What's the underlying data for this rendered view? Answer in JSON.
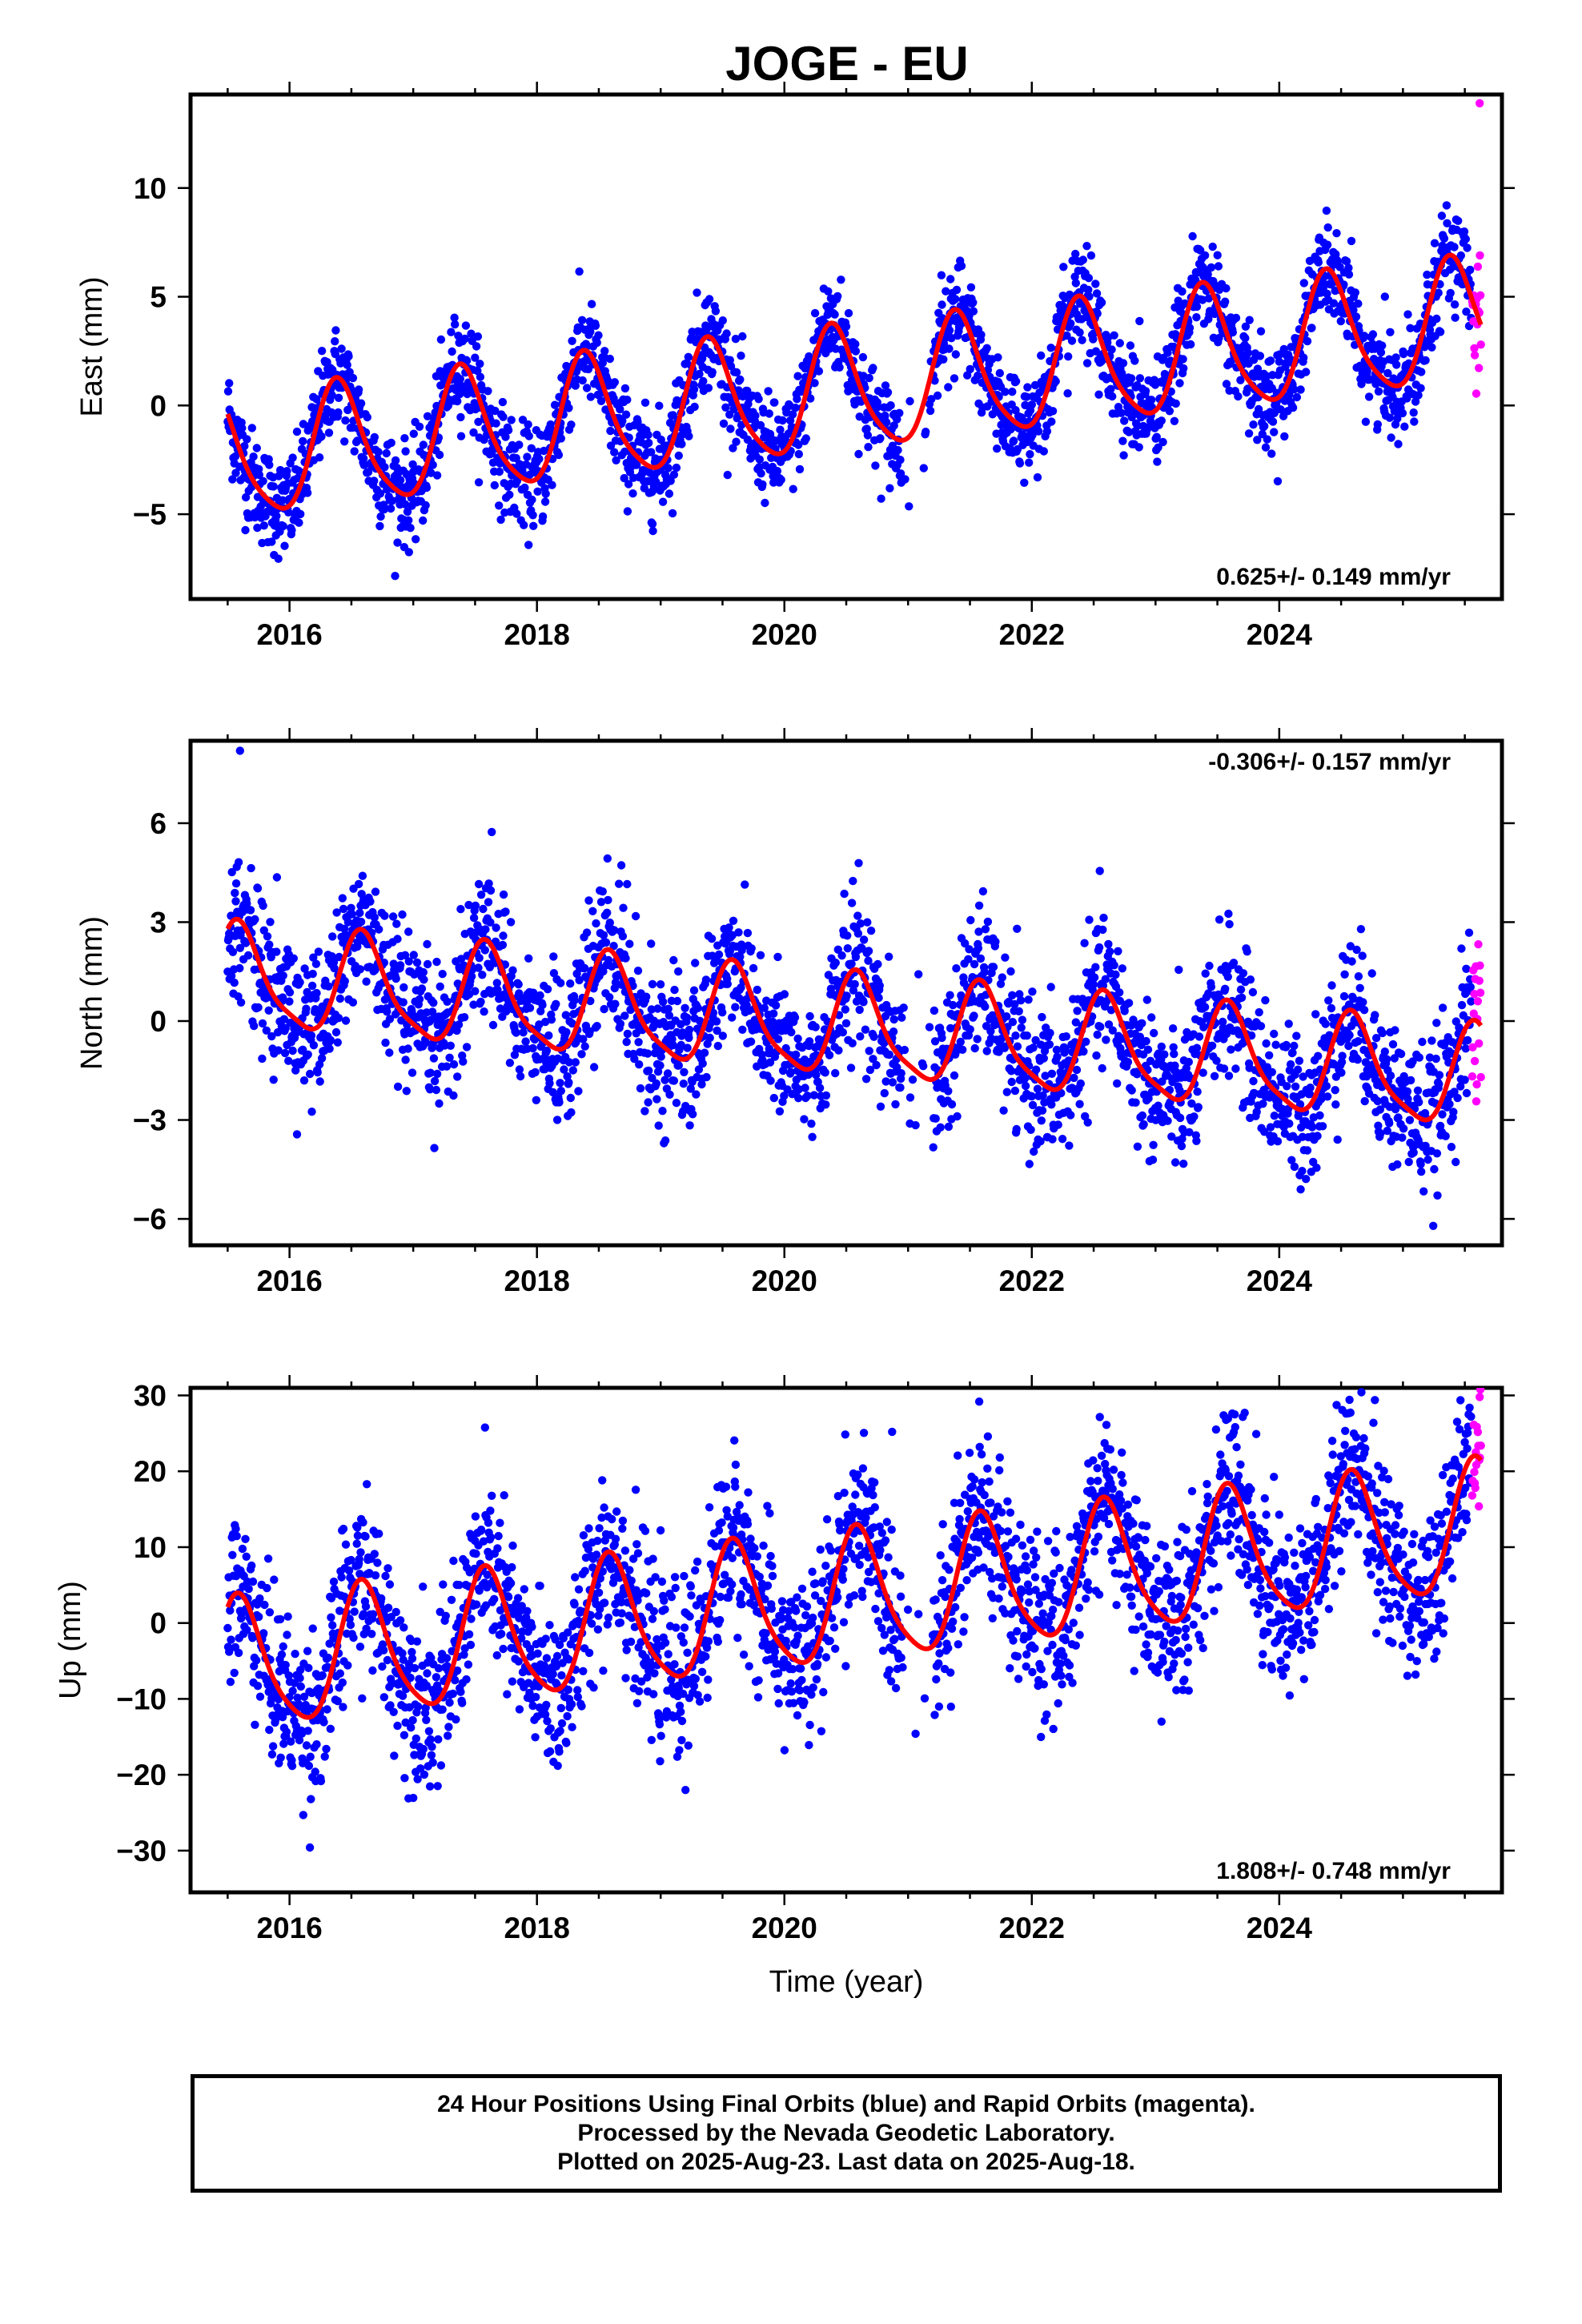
{
  "title": "JOGE - EU",
  "colors": {
    "final_orbits": "#0000ff",
    "rapid_orbits": "#ff00ff",
    "model": "#ff0000"
  },
  "chart_data": [
    {
      "type": "scatter",
      "ylabel": "East (mm)",
      "xlabel": "",
      "xlim": [
        2015.2,
        2025.8
      ],
      "ylim": [
        -8.9,
        14.3
      ],
      "xticks": [
        2016,
        2018,
        2020,
        2022,
        2024
      ],
      "yticks": [
        -5,
        0,
        5,
        10
      ],
      "rate": "0.625+/- 0.149 mm/yr",
      "rate_position": "bottom-right",
      "model": {
        "t0": 2015.5,
        "t1": 2025.63,
        "offset": -2.5,
        "trend": 0.625,
        "annual_amplitude": 2.8,
        "annual_peak": 2015.4,
        "semiannual_amplitude": 0.5,
        "semiannual_peak": 2015.35
      },
      "scatter": {
        "final_start": 2015.5,
        "final_end": 2025.55,
        "final_scatter": 1.15,
        "rapid_start": 2025.56,
        "rapid_end": 2025.63,
        "rapid_scatter": 1.4,
        "outliers": [
          2025.62,
          13.9
        ]
      },
      "series": [
        {
          "name": "Final Orbits",
          "color": "#0000ff"
        },
        {
          "name": "Rapid Orbits",
          "color": "#ff00ff"
        },
        {
          "name": "Model",
          "color": "#ff0000"
        }
      ]
    },
    {
      "type": "scatter",
      "ylabel": "North (mm)",
      "xlabel": "",
      "xlim": [
        2015.2,
        2025.8
      ],
      "ylim": [
        -6.8,
        8.5
      ],
      "xticks": [
        2016,
        2018,
        2020,
        2022,
        2024
      ],
      "yticks": [
        -6,
        -3,
        0,
        3,
        6
      ],
      "rate": "-0.306+/- 0.157 mm/yr",
      "rate_position": "top-right",
      "model": {
        "t0": 2015.5,
        "t1": 2025.63,
        "offset": 1.3,
        "trend": -0.306,
        "annual_amplitude": 1.5,
        "annual_peak": 2015.6,
        "semiannual_amplitude": 0.35,
        "semiannual_peak": 2015.55
      },
      "scatter": {
        "final_start": 2015.5,
        "final_end": 2025.55,
        "final_scatter": 1.1,
        "rapid_start": 2025.56,
        "rapid_end": 2025.63,
        "rapid_scatter": 1.6,
        "outliers": [
          2015.6,
          8.2
        ]
      },
      "series": [
        {
          "name": "Final Orbits",
          "color": "#0000ff"
        },
        {
          "name": "Rapid Orbits",
          "color": "#ff00ff"
        },
        {
          "name": "Model",
          "color": "#ff0000"
        }
      ]
    },
    {
      "type": "scatter",
      "ylabel": "Up (mm)",
      "xlabel": "Time (year)",
      "xlim": [
        2015.2,
        2025.8
      ],
      "ylim": [
        -35.5,
        31
      ],
      "xticks": [
        2016,
        2018,
        2020,
        2022,
        2024
      ],
      "yticks": [
        -30,
        -20,
        -10,
        0,
        10,
        20,
        30
      ],
      "rate": "1.808+/- 0.748 mm/yr",
      "rate_position": "bottom-right",
      "model": {
        "t0": 2015.5,
        "t1": 2025.63,
        "offset": -6.0,
        "trend": 1.808,
        "annual_amplitude": 8.5,
        "annual_peak": 2015.6,
        "semiannual_amplitude": 1.5,
        "semiannual_peak": 2015.55
      },
      "scatter": {
        "final_start": 2015.5,
        "final_end": 2025.55,
        "final_scatter": 5.5,
        "rapid_start": 2025.56,
        "rapid_end": 2025.63,
        "rapid_scatter": 5.0,
        "outliers": [
          2025.62,
          29.8
        ]
      },
      "series": [
        {
          "name": "Final Orbits",
          "color": "#0000ff"
        },
        {
          "name": "Rapid Orbits",
          "color": "#ff00ff"
        },
        {
          "name": "Model",
          "color": "#ff0000"
        }
      ]
    }
  ],
  "footer": {
    "line1": "24 Hour Positions Using Final Orbits (blue) and Rapid Orbits (magenta).",
    "line2": "Processed by the Nevada Geodetic Laboratory.",
    "line3": "Plotted on 2025-Aug-23. Last data on 2025-Aug-18."
  }
}
